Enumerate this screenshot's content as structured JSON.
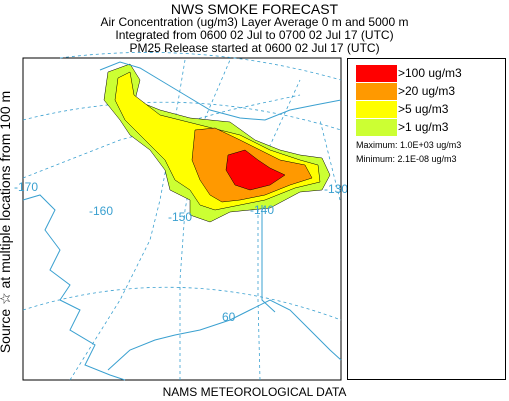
{
  "header": {
    "title": "NWS SMOKE FORECAST",
    "line1": "Air Concentration (ug/m3) Layer Average    0 m and  5000 m",
    "line2": "Integrated from 0600 02 Jul to 0700 02 Jul 17 (UTC)",
    "line3": "PM25 Release started at 0600 02 Jul 17 (UTC)"
  },
  "side_label": "Source ☆  at multiple locations   from   100 m",
  "footer": "NAMS METEOROLOGICAL DATA",
  "map": {
    "longitude_labels": [
      "-170",
      "-160",
      "-150",
      "-140",
      "-130"
    ],
    "latitude_labels": [
      "60"
    ],
    "colors": {
      "coast": "#3aa0d0",
      "graticule": "#3aa0d0",
      "level_100": "#ff0000",
      "level_20": "#ff9900",
      "level_5": "#ffff00",
      "level_1": "#ccff33"
    }
  },
  "legend": {
    "items": [
      {
        "label": ">100 ug/m3",
        "color": "#ff0000"
      },
      {
        "label": ">20 ug/m3",
        "color": "#ff9900"
      },
      {
        "label": ">5 ug/m3",
        "color": "#ffff00"
      },
      {
        "label": ">1 ug/m3",
        "color": "#ccff33"
      }
    ],
    "maximum": "Maximum: 1.0E+03 ug/m3",
    "minimum": "Minimum: 2.1E-08 ug/m3"
  }
}
